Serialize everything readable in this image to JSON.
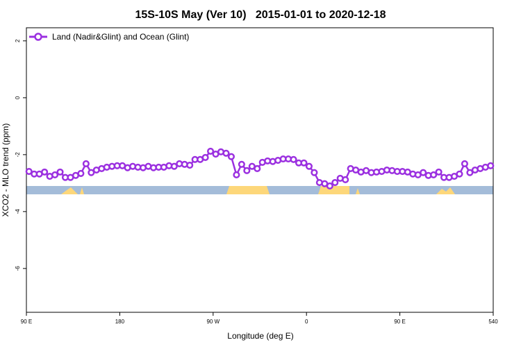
{
  "chart_data": {
    "type": "line",
    "title": "15S-10S May (Ver 10)   2015-01-01 to 2020-12-18",
    "x_label": "Longitude (deg E)",
    "y_label": "XCO2 - MLO trend (ppm)",
    "xlim": [
      90,
      540
    ],
    "xticks": [
      {
        "value": 90,
        "label": "90 E"
      },
      180,
      {
        "value": 270,
        "label": "90 W"
      },
      {
        "value": 360,
        "label": "0"
      },
      {
        "value": 450,
        "label": "90 E"
      },
      540
    ],
    "ylim": [
      -7.54,
      2.46
    ],
    "yticks": [
      2,
      0,
      -2,
      -4,
      -6
    ],
    "grid": false,
    "legend": "top-left",
    "x": [
      92.5,
      97.5,
      102.5,
      107.5,
      112.5,
      117.5,
      122.5,
      127.5,
      132.5,
      137.5,
      142.5,
      147.5,
      152.5,
      157.5,
      162.5,
      167.5,
      172.5,
      177.5,
      182.5,
      187.5,
      192.5,
      197.5,
      202.5,
      207.5,
      212.5,
      217.5,
      222.5,
      227.5,
      232.5,
      237.5,
      242.5,
      247.5,
      252.5,
      257.5,
      262.5,
      267.5,
      272.5,
      277.5,
      282.5,
      287.5,
      292.5,
      297.5,
      302.5,
      307.5,
      312.5,
      317.5,
      322.5,
      327.5,
      332.5,
      337.5,
      342.5,
      347.5,
      352.5,
      357.5,
      362.5,
      367.5,
      372.5,
      377.5,
      382.5,
      387.5,
      392.5,
      397.5,
      402.5,
      407.5,
      412.5,
      417.5,
      422.5,
      427.5,
      432.5,
      437.5,
      442.5,
      447.5,
      452.5,
      457.5,
      462.5,
      467.5,
      472.5,
      477.5,
      482.5,
      487.5,
      492.5,
      497.5,
      502.5,
      507.5,
      512.5,
      517.5,
      522.5,
      527.5,
      532.5,
      537.5
    ],
    "series": [
      {
        "name": "Land (Nadir&Glint) and Ocean (Glint)",
        "color": "#9b30e0",
        "values": [
          -2.59,
          -2.68,
          -2.68,
          -2.61,
          -2.76,
          -2.71,
          -2.61,
          -2.8,
          -2.8,
          -2.73,
          -2.66,
          -2.32,
          -2.63,
          -2.54,
          -2.49,
          -2.44,
          -2.41,
          -2.39,
          -2.39,
          -2.46,
          -2.41,
          -2.44,
          -2.46,
          -2.41,
          -2.46,
          -2.44,
          -2.44,
          -2.39,
          -2.41,
          -2.32,
          -2.34,
          -2.37,
          -2.17,
          -2.17,
          -2.1,
          -1.88,
          -1.98,
          -1.9,
          -1.95,
          -2.07,
          -2.71,
          -2.34,
          -2.56,
          -2.41,
          -2.49,
          -2.27,
          -2.22,
          -2.24,
          -2.2,
          -2.15,
          -2.15,
          -2.17,
          -2.29,
          -2.29,
          -2.41,
          -2.63,
          -2.98,
          -3.02,
          -3.1,
          -2.98,
          -2.83,
          -2.88,
          -2.49,
          -2.54,
          -2.61,
          -2.56,
          -2.63,
          -2.61,
          -2.59,
          -2.54,
          -2.56,
          -2.59,
          -2.59,
          -2.61,
          -2.68,
          -2.71,
          -2.63,
          -2.73,
          -2.71,
          -2.61,
          -2.8,
          -2.8,
          -2.76,
          -2.68,
          -2.32,
          -2.63,
          -2.54,
          -2.49,
          -2.44,
          -2.39
        ]
      }
    ]
  }
}
